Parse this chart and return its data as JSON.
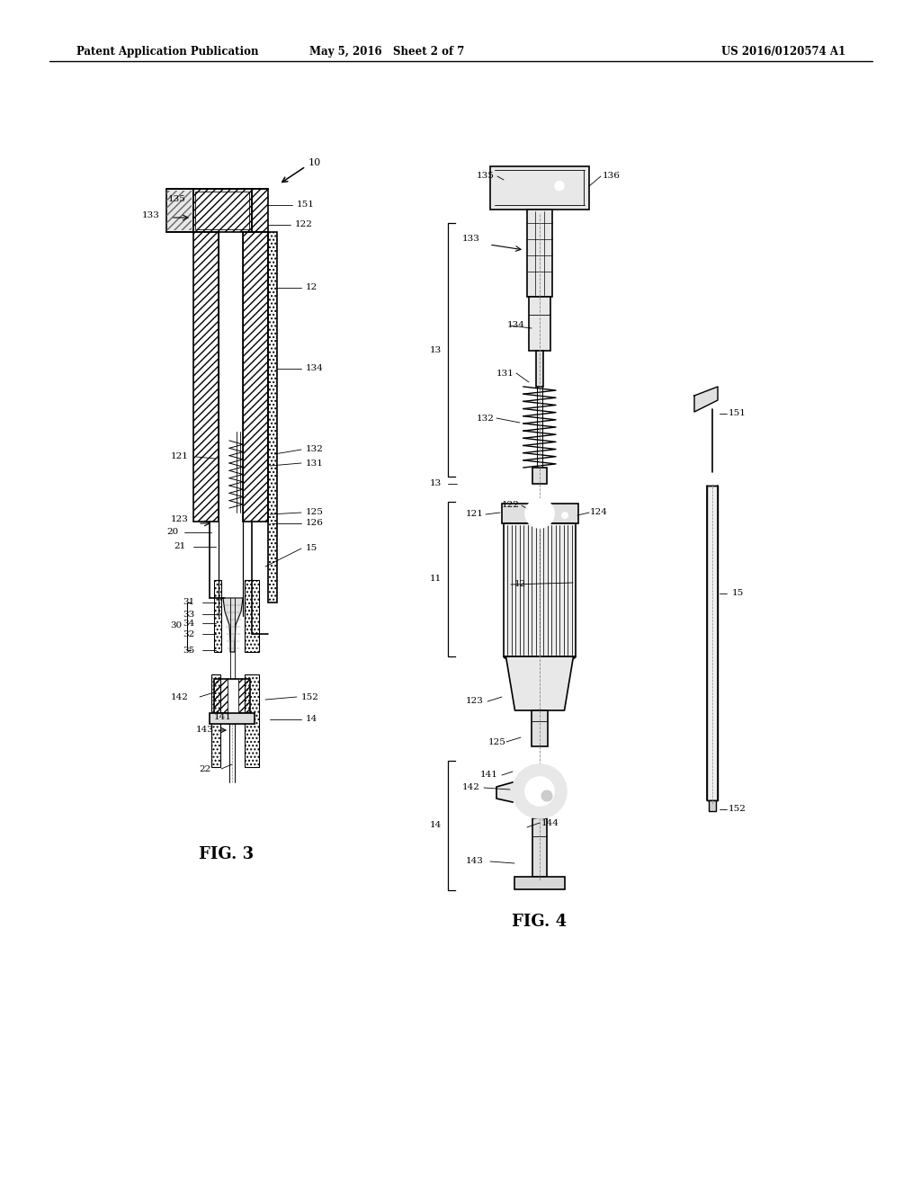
{
  "header_left": "Patent Application Publication",
  "header_middle": "May 5, 2016   Sheet 2 of 7",
  "header_right": "US 2016/0120574 A1",
  "fig3_label": "FIG. 3",
  "fig4_label": "FIG. 4",
  "background": "#ffffff",
  "line_color": "#000000"
}
